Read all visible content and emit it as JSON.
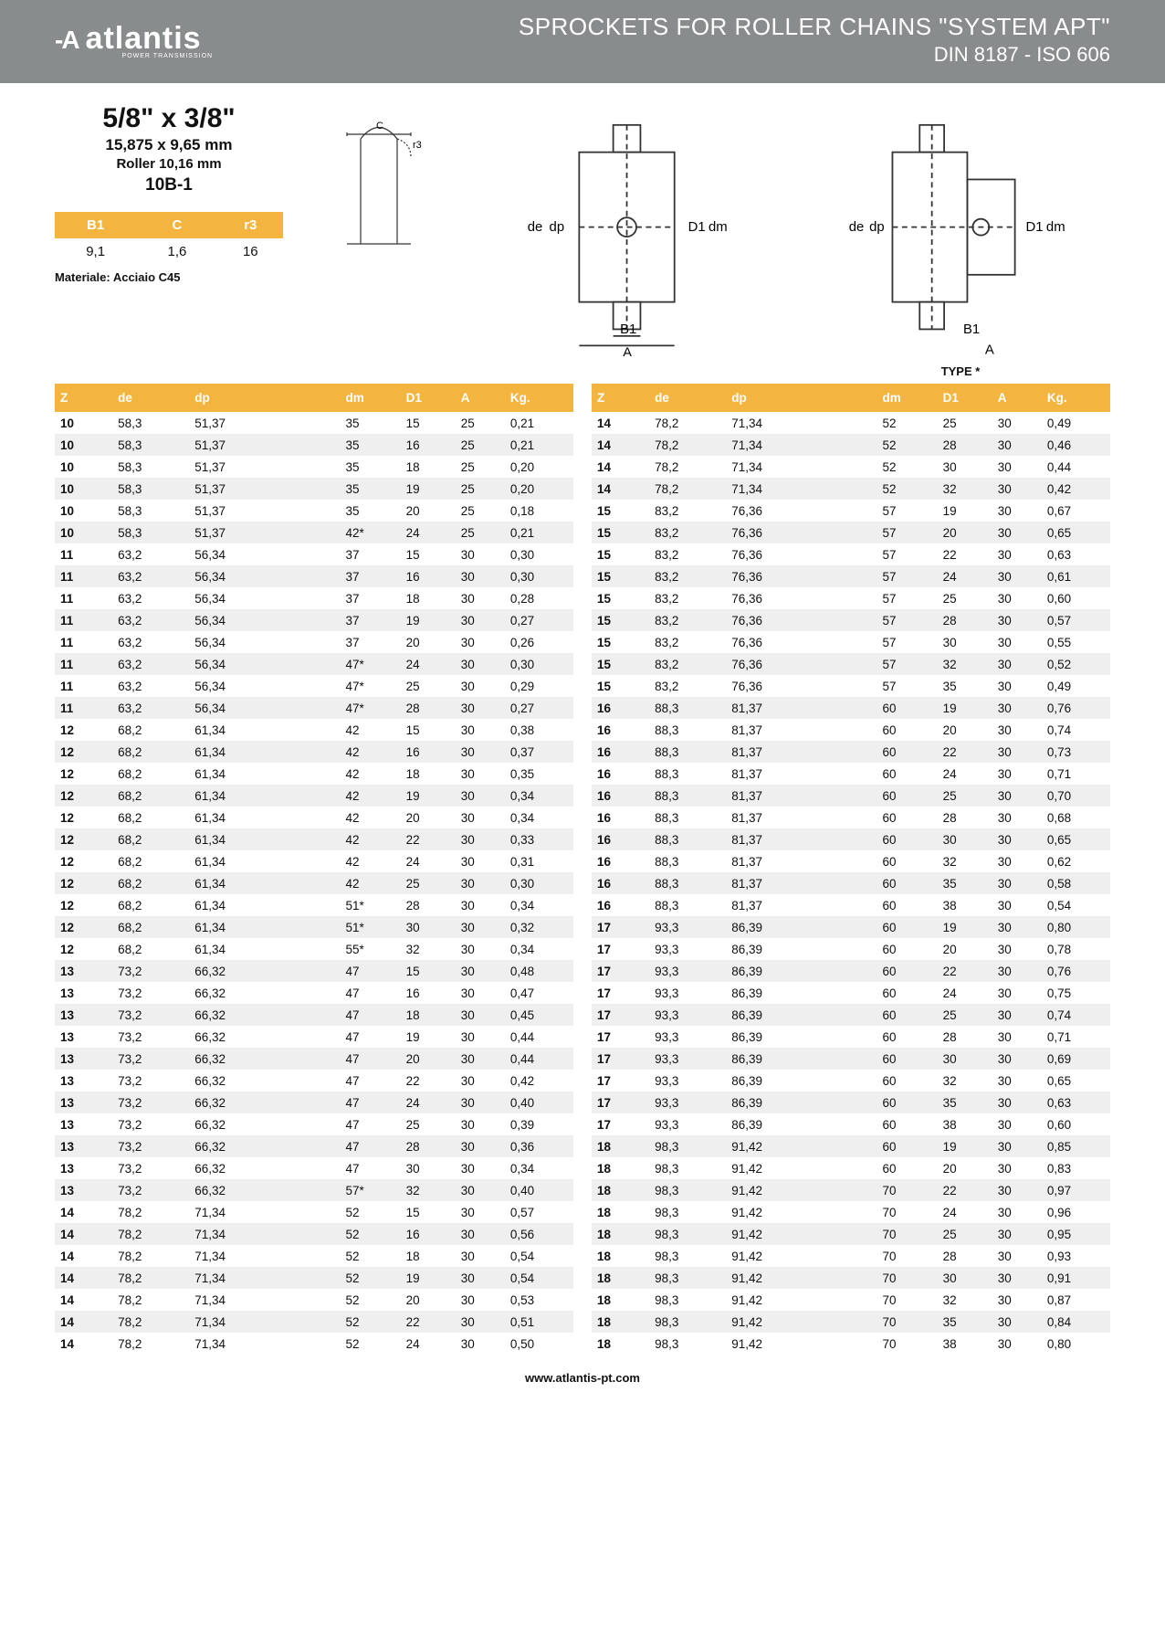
{
  "header": {
    "brand": "atlantis",
    "brand_sub": "POWER TRANSMISSION",
    "title1": "SPROCKETS FOR ROLLER CHAINS \"SYSTEM APT\"",
    "title2": "DIN 8187 - ISO 606"
  },
  "spec": {
    "size": "5/8\" x 3/8\"",
    "mm": "15,875 x 9,65 mm",
    "roller": "Roller 10,16 mm",
    "code": "10B-1",
    "mini_headers": [
      "B1",
      "C",
      "r3"
    ],
    "mini_values": [
      "9,1",
      "1,6",
      "16"
    ],
    "materiale": "Materiale: Acciaio C45",
    "type_label": "TYPE *"
  },
  "columns": [
    "Z",
    "de",
    "dp",
    "dm",
    "D1",
    "A",
    "Kg."
  ],
  "left_rows": [
    [
      "10",
      "58,3",
      "51,37",
      "35",
      "15",
      "25",
      "0,21"
    ],
    [
      "10",
      "58,3",
      "51,37",
      "35",
      "16",
      "25",
      "0,21"
    ],
    [
      "10",
      "58,3",
      "51,37",
      "35",
      "18",
      "25",
      "0,20"
    ],
    [
      "10",
      "58,3",
      "51,37",
      "35",
      "19",
      "25",
      "0,20"
    ],
    [
      "10",
      "58,3",
      "51,37",
      "35",
      "20",
      "25",
      "0,18"
    ],
    [
      "10",
      "58,3",
      "51,37",
      "42*",
      "24",
      "25",
      "0,21"
    ],
    [
      "11",
      "63,2",
      "56,34",
      "37",
      "15",
      "30",
      "0,30"
    ],
    [
      "11",
      "63,2",
      "56,34",
      "37",
      "16",
      "30",
      "0,30"
    ],
    [
      "11",
      "63,2",
      "56,34",
      "37",
      "18",
      "30",
      "0,28"
    ],
    [
      "11",
      "63,2",
      "56,34",
      "37",
      "19",
      "30",
      "0,27"
    ],
    [
      "11",
      "63,2",
      "56,34",
      "37",
      "20",
      "30",
      "0,26"
    ],
    [
      "11",
      "63,2",
      "56,34",
      "47*",
      "24",
      "30",
      "0,30"
    ],
    [
      "11",
      "63,2",
      "56,34",
      "47*",
      "25",
      "30",
      "0,29"
    ],
    [
      "11",
      "63,2",
      "56,34",
      "47*",
      "28",
      "30",
      "0,27"
    ],
    [
      "12",
      "68,2",
      "61,34",
      "42",
      "15",
      "30",
      "0,38"
    ],
    [
      "12",
      "68,2",
      "61,34",
      "42",
      "16",
      "30",
      "0,37"
    ],
    [
      "12",
      "68,2",
      "61,34",
      "42",
      "18",
      "30",
      "0,35"
    ],
    [
      "12",
      "68,2",
      "61,34",
      "42",
      "19",
      "30",
      "0,34"
    ],
    [
      "12",
      "68,2",
      "61,34",
      "42",
      "20",
      "30",
      "0,34"
    ],
    [
      "12",
      "68,2",
      "61,34",
      "42",
      "22",
      "30",
      "0,33"
    ],
    [
      "12",
      "68,2",
      "61,34",
      "42",
      "24",
      "30",
      "0,31"
    ],
    [
      "12",
      "68,2",
      "61,34",
      "42",
      "25",
      "30",
      "0,30"
    ],
    [
      "12",
      "68,2",
      "61,34",
      "51*",
      "28",
      "30",
      "0,34"
    ],
    [
      "12",
      "68,2",
      "61,34",
      "51*",
      "30",
      "30",
      "0,32"
    ],
    [
      "12",
      "68,2",
      "61,34",
      "55*",
      "32",
      "30",
      "0,34"
    ],
    [
      "13",
      "73,2",
      "66,32",
      "47",
      "15",
      "30",
      "0,48"
    ],
    [
      "13",
      "73,2",
      "66,32",
      "47",
      "16",
      "30",
      "0,47"
    ],
    [
      "13",
      "73,2",
      "66,32",
      "47",
      "18",
      "30",
      "0,45"
    ],
    [
      "13",
      "73,2",
      "66,32",
      "47",
      "19",
      "30",
      "0,44"
    ],
    [
      "13",
      "73,2",
      "66,32",
      "47",
      "20",
      "30",
      "0,44"
    ],
    [
      "13",
      "73,2",
      "66,32",
      "47",
      "22",
      "30",
      "0,42"
    ],
    [
      "13",
      "73,2",
      "66,32",
      "47",
      "24",
      "30",
      "0,40"
    ],
    [
      "13",
      "73,2",
      "66,32",
      "47",
      "25",
      "30",
      "0,39"
    ],
    [
      "13",
      "73,2",
      "66,32",
      "47",
      "28",
      "30",
      "0,36"
    ],
    [
      "13",
      "73,2",
      "66,32",
      "47",
      "30",
      "30",
      "0,34"
    ],
    [
      "13",
      "73,2",
      "66,32",
      "57*",
      "32",
      "30",
      "0,40"
    ],
    [
      "14",
      "78,2",
      "71,34",
      "52",
      "15",
      "30",
      "0,57"
    ],
    [
      "14",
      "78,2",
      "71,34",
      "52",
      "16",
      "30",
      "0,56"
    ],
    [
      "14",
      "78,2",
      "71,34",
      "52",
      "18",
      "30",
      "0,54"
    ],
    [
      "14",
      "78,2",
      "71,34",
      "52",
      "19",
      "30",
      "0,54"
    ],
    [
      "14",
      "78,2",
      "71,34",
      "52",
      "20",
      "30",
      "0,53"
    ],
    [
      "14",
      "78,2",
      "71,34",
      "52",
      "22",
      "30",
      "0,51"
    ],
    [
      "14",
      "78,2",
      "71,34",
      "52",
      "24",
      "30",
      "0,50"
    ]
  ],
  "right_rows": [
    [
      "14",
      "78,2",
      "71,34",
      "52",
      "25",
      "30",
      "0,49"
    ],
    [
      "14",
      "78,2",
      "71,34",
      "52",
      "28",
      "30",
      "0,46"
    ],
    [
      "14",
      "78,2",
      "71,34",
      "52",
      "30",
      "30",
      "0,44"
    ],
    [
      "14",
      "78,2",
      "71,34",
      "52",
      "32",
      "30",
      "0,42"
    ],
    [
      "15",
      "83,2",
      "76,36",
      "57",
      "19",
      "30",
      "0,67"
    ],
    [
      "15",
      "83,2",
      "76,36",
      "57",
      "20",
      "30",
      "0,65"
    ],
    [
      "15",
      "83,2",
      "76,36",
      "57",
      "22",
      "30",
      "0,63"
    ],
    [
      "15",
      "83,2",
      "76,36",
      "57",
      "24",
      "30",
      "0,61"
    ],
    [
      "15",
      "83,2",
      "76,36",
      "57",
      "25",
      "30",
      "0,60"
    ],
    [
      "15",
      "83,2",
      "76,36",
      "57",
      "28",
      "30",
      "0,57"
    ],
    [
      "15",
      "83,2",
      "76,36",
      "57",
      "30",
      "30",
      "0,55"
    ],
    [
      "15",
      "83,2",
      "76,36",
      "57",
      "32",
      "30",
      "0,52"
    ],
    [
      "15",
      "83,2",
      "76,36",
      "57",
      "35",
      "30",
      "0,49"
    ],
    [
      "16",
      "88,3",
      "81,37",
      "60",
      "19",
      "30",
      "0,76"
    ],
    [
      "16",
      "88,3",
      "81,37",
      "60",
      "20",
      "30",
      "0,74"
    ],
    [
      "16",
      "88,3",
      "81,37",
      "60",
      "22",
      "30",
      "0,73"
    ],
    [
      "16",
      "88,3",
      "81,37",
      "60",
      "24",
      "30",
      "0,71"
    ],
    [
      "16",
      "88,3",
      "81,37",
      "60",
      "25",
      "30",
      "0,70"
    ],
    [
      "16",
      "88,3",
      "81,37",
      "60",
      "28",
      "30",
      "0,68"
    ],
    [
      "16",
      "88,3",
      "81,37",
      "60",
      "30",
      "30",
      "0,65"
    ],
    [
      "16",
      "88,3",
      "81,37",
      "60",
      "32",
      "30",
      "0,62"
    ],
    [
      "16",
      "88,3",
      "81,37",
      "60",
      "35",
      "30",
      "0,58"
    ],
    [
      "16",
      "88,3",
      "81,37",
      "60",
      "38",
      "30",
      "0,54"
    ],
    [
      "17",
      "93,3",
      "86,39",
      "60",
      "19",
      "30",
      "0,80"
    ],
    [
      "17",
      "93,3",
      "86,39",
      "60",
      "20",
      "30",
      "0,78"
    ],
    [
      "17",
      "93,3",
      "86,39",
      "60",
      "22",
      "30",
      "0,76"
    ],
    [
      "17",
      "93,3",
      "86,39",
      "60",
      "24",
      "30",
      "0,75"
    ],
    [
      "17",
      "93,3",
      "86,39",
      "60",
      "25",
      "30",
      "0,74"
    ],
    [
      "17",
      "93,3",
      "86,39",
      "60",
      "28",
      "30",
      "0,71"
    ],
    [
      "17",
      "93,3",
      "86,39",
      "60",
      "30",
      "30",
      "0,69"
    ],
    [
      "17",
      "93,3",
      "86,39",
      "60",
      "32",
      "30",
      "0,65"
    ],
    [
      "17",
      "93,3",
      "86,39",
      "60",
      "35",
      "30",
      "0,63"
    ],
    [
      "17",
      "93,3",
      "86,39",
      "60",
      "38",
      "30",
      "0,60"
    ],
    [
      "18",
      "98,3",
      "91,42",
      "60",
      "19",
      "30",
      "0,85"
    ],
    [
      "18",
      "98,3",
      "91,42",
      "60",
      "20",
      "30",
      "0,83"
    ],
    [
      "18",
      "98,3",
      "91,42",
      "70",
      "22",
      "30",
      "0,97"
    ],
    [
      "18",
      "98,3",
      "91,42",
      "70",
      "24",
      "30",
      "0,96"
    ],
    [
      "18",
      "98,3",
      "91,42",
      "70",
      "25",
      "30",
      "0,95"
    ],
    [
      "18",
      "98,3",
      "91,42",
      "70",
      "28",
      "30",
      "0,93"
    ],
    [
      "18",
      "98,3",
      "91,42",
      "70",
      "30",
      "30",
      "0,91"
    ],
    [
      "18",
      "98,3",
      "91,42",
      "70",
      "32",
      "30",
      "0,87"
    ],
    [
      "18",
      "98,3",
      "91,42",
      "70",
      "35",
      "30",
      "0,84"
    ],
    [
      "18",
      "98,3",
      "91,42",
      "70",
      "38",
      "30",
      "0,80"
    ]
  ],
  "colors": {
    "header_bg": "#888c8c",
    "accent": "#f3b53f",
    "stripe": "#efefef"
  },
  "footer": "www.atlantis-pt.com"
}
